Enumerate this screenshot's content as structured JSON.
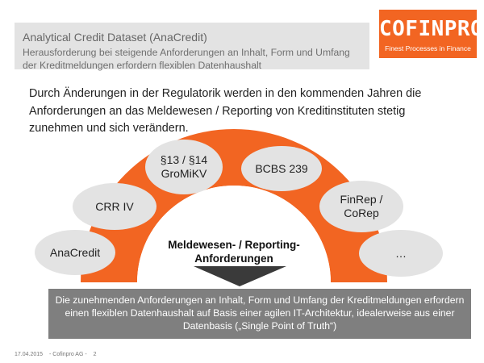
{
  "header": {
    "title": "Analytical Credit Dataset (AnaCredit)",
    "subtitle": "Herausforderung bei steigende Anforderungen an Inhalt, Form und Umfang der Kreditmeldungen erfordern flexiblen Datenhaushalt"
  },
  "logo": {
    "word": "COFINPRO",
    "tagline": "Finest Processes in Finance"
  },
  "intro": "Durch Änderungen in der Regulatorik werden in den kommenden Jahren die Anforderungen an das Meldewesen / Reporting von Kreditinstituten stetig zunehmen und sich verändern.",
  "diagram": {
    "center_line1": "Meldewesen- / Reporting-",
    "center_line2": "Anforderungen",
    "bubbles": {
      "anacredit": "AnaCredit",
      "crr": "CRR IV",
      "groMiKV_line1": "§13 / §14",
      "groMiKV_line2": "GroMiKV",
      "bcbs": "BCBS 239",
      "finrep_line1": "FinRep /",
      "finrep_line2": "CoRep",
      "more": "…"
    }
  },
  "conclusion": "Die zunehmenden Anforderungen an Inhalt, Form und Umfang der Kreditmeldungen erfordern einen flexiblen Datenhaushalt auf Basis einer agilen IT-Architektur, idealerweise aus einer Datenbasis („Single Point of Truth“)",
  "footer": {
    "date": "17.04.2015",
    "company": "- Cofinpro AG -",
    "page": "2"
  },
  "colors": {
    "accent": "#f26522",
    "bubble": "#e3e3e3",
    "box": "#7f7f7f"
  }
}
